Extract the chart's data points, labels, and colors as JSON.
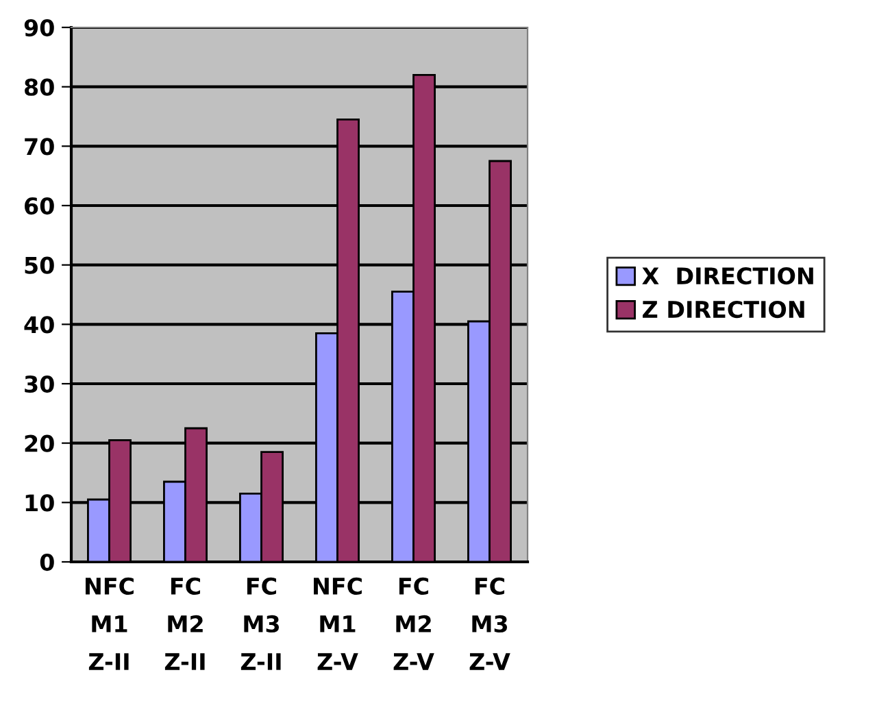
{
  "chart_data": {
    "type": "bar",
    "categories": [
      "NFC\nM1\nZ-II",
      "FC\nM2\nZ-II",
      "FC\nM3\nZ-II",
      "NFC\nM1\nZ-V",
      "FC\nM2\nZ-V",
      "FC\nM3\nZ-V"
    ],
    "series": [
      {
        "name": "X  DIRECTION",
        "color": "#9999ff",
        "values": [
          10.5,
          13.5,
          11.5,
          38.5,
          45.5,
          40.5
        ]
      },
      {
        "name": "Z DIRECTION",
        "color": "#993366",
        "values": [
          20.5,
          22.5,
          18.5,
          74.5,
          82,
          67.5
        ]
      }
    ],
    "ylim": [
      0,
      90
    ],
    "yticks": [
      0,
      10,
      20,
      30,
      40,
      50,
      60,
      70,
      80,
      90
    ],
    "grid": "y",
    "legend": "right"
  }
}
